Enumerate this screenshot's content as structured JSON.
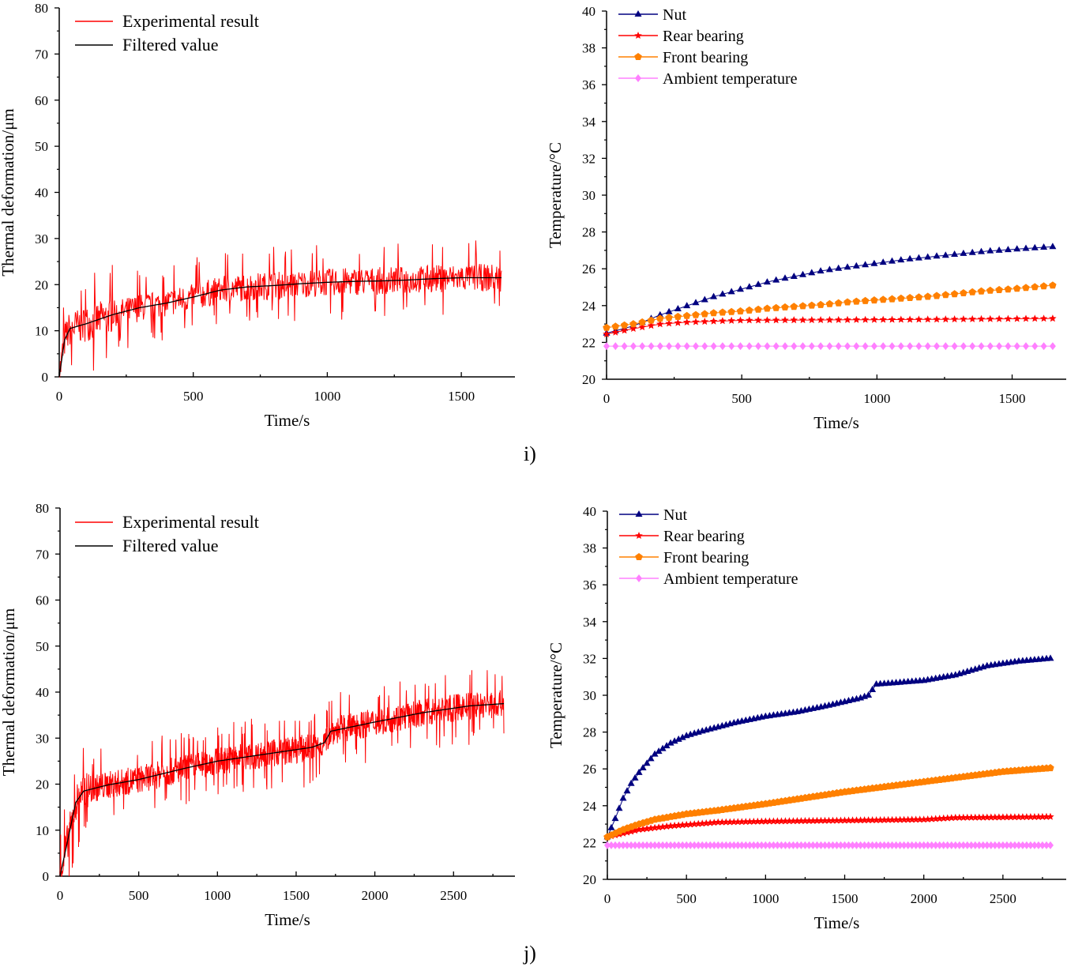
{
  "panel_labels": [
    "i)",
    "j)"
  ],
  "chart_data": [
    {
      "id": "i-deformation",
      "type": "line",
      "xlabel": "Time/s",
      "ylabel": "Thermal deformation/μm",
      "xlim": [
        0,
        1700
      ],
      "ylim": [
        0,
        80
      ],
      "xticks": [
        0,
        500,
        1000,
        1500
      ],
      "yticks": [
        0,
        10,
        20,
        30,
        40,
        50,
        60,
        70,
        80
      ],
      "legend": "top-left",
      "series": [
        {
          "name": "Experimental result",
          "color": "#ff0000",
          "noise_amplitude": 5,
          "x_end": 1650
        },
        {
          "name": "Filtered value",
          "color": "#000000",
          "x": [
            0,
            20,
            40,
            100,
            200,
            300,
            400,
            500,
            600,
            700,
            800,
            900,
            1000,
            1100,
            1200,
            1300,
            1400,
            1500,
            1650
          ],
          "y": [
            0,
            8,
            10.5,
            11.5,
            13.5,
            15,
            16,
            17.3,
            18.8,
            19.5,
            19.8,
            20.2,
            20.5,
            20.7,
            20.8,
            21,
            21.3,
            21.5,
            21.5
          ]
        }
      ]
    },
    {
      "id": "i-temperature",
      "type": "line",
      "xlabel": "Time/s",
      "ylabel": "Temperature/°C",
      "xlim": [
        0,
        1700
      ],
      "ylim": [
        20,
        40
      ],
      "xticks": [
        0,
        500,
        1000,
        1500
      ],
      "yticks": [
        20,
        22,
        24,
        26,
        28,
        30,
        32,
        34,
        36,
        38,
        40
      ],
      "legend": "top-left",
      "series": [
        {
          "name": "Nut",
          "color": "#000080",
          "marker": "triangle",
          "x": [
            0,
            100,
            200,
            300,
            400,
            500,
            600,
            700,
            800,
            900,
            1000,
            1100,
            1200,
            1300,
            1400,
            1500,
            1650
          ],
          "y": [
            22.5,
            22.9,
            23.5,
            24.0,
            24.5,
            24.9,
            25.3,
            25.6,
            25.9,
            26.1,
            26.3,
            26.5,
            26.65,
            26.8,
            26.95,
            27.05,
            27.2
          ]
        },
        {
          "name": "Rear bearing",
          "color": "#ff0000",
          "marker": "star",
          "x": [
            0,
            100,
            200,
            300,
            400,
            500,
            800,
            1200,
            1650
          ],
          "y": [
            22.45,
            22.75,
            23.0,
            23.1,
            23.15,
            23.2,
            23.22,
            23.25,
            23.3
          ]
        },
        {
          "name": "Front bearing",
          "color": "#ff8000",
          "marker": "pentagon",
          "x": [
            0,
            100,
            200,
            300,
            400,
            500,
            600,
            700,
            800,
            900,
            1000,
            1100,
            1200,
            1300,
            1400,
            1500,
            1650
          ],
          "y": [
            22.8,
            23.0,
            23.3,
            23.45,
            23.6,
            23.7,
            23.85,
            23.95,
            24.05,
            24.2,
            24.3,
            24.4,
            24.5,
            24.65,
            24.8,
            24.9,
            25.1
          ]
        },
        {
          "name": "Ambient temperature",
          "color": "#ff80ff",
          "marker": "diamond",
          "x": [
            0,
            1650
          ],
          "y": [
            21.8,
            21.8
          ]
        }
      ]
    },
    {
      "id": "j-deformation",
      "type": "line",
      "xlabel": "Time/s",
      "ylabel": "Thermal deformation/μm",
      "xlim": [
        0,
        2890
      ],
      "ylim": [
        0,
        80
      ],
      "xticks": [
        0,
        500,
        1000,
        1500,
        2000,
        2500
      ],
      "yticks": [
        0,
        10,
        20,
        30,
        40,
        50,
        60,
        70,
        80
      ],
      "legend": "top-left",
      "series": [
        {
          "name": "Experimental result",
          "color": "#ff0000",
          "noise_amplitude": 5,
          "x_end": 2820
        },
        {
          "name": "Filtered value",
          "color": "#000000",
          "x": [
            0,
            50,
            100,
            150,
            300,
            500,
            800,
            1000,
            1300,
            1600,
            1680,
            1720,
            2000,
            2300,
            2600,
            2820
          ],
          "y": [
            0,
            8,
            16,
            18.5,
            19.8,
            21,
            23.5,
            25,
            26.5,
            28,
            29,
            31.5,
            33.5,
            35.5,
            37,
            37.5
          ]
        }
      ]
    },
    {
      "id": "j-temperature",
      "type": "line",
      "xlabel": "Time/s",
      "ylabel": "Temperature/°C",
      "xlim": [
        0,
        2900
      ],
      "ylim": [
        20,
        40
      ],
      "xticks": [
        0,
        500,
        1000,
        1500,
        2000,
        2500
      ],
      "yticks": [
        20,
        22,
        24,
        26,
        28,
        30,
        32,
        34,
        36,
        38,
        40
      ],
      "legend": "top-left",
      "series": [
        {
          "name": "Nut",
          "color": "#000080",
          "marker": "triangle",
          "x": [
            0,
            50,
            100,
            150,
            200,
            250,
            300,
            400,
            500,
            600,
            800,
            1000,
            1200,
            1400,
            1600,
            1650,
            1700,
            2000,
            2200,
            2400,
            2600,
            2800
          ],
          "y": [
            22.3,
            23.3,
            24.4,
            25.2,
            25.8,
            26.3,
            26.8,
            27.4,
            27.8,
            28.05,
            28.5,
            28.85,
            29.1,
            29.45,
            29.85,
            30.0,
            30.6,
            30.8,
            31.1,
            31.6,
            31.85,
            32.0
          ]
        },
        {
          "name": "Rear bearing",
          "color": "#ff0000",
          "marker": "star",
          "x": [
            0,
            100,
            200,
            400,
            700,
            1000,
            1500,
            2000,
            2200,
            2800
          ],
          "y": [
            22.3,
            22.5,
            22.7,
            22.9,
            23.1,
            23.15,
            23.2,
            23.25,
            23.35,
            23.4
          ]
        },
        {
          "name": "Front bearing",
          "color": "#ff8000",
          "marker": "pentagon",
          "x": [
            0,
            100,
            200,
            300,
            500,
            700,
            1000,
            1500,
            2000,
            2500,
            2800
          ],
          "y": [
            22.3,
            22.7,
            23.0,
            23.25,
            23.55,
            23.75,
            24.1,
            24.75,
            25.3,
            25.85,
            26.05
          ]
        },
        {
          "name": "Ambient temperature",
          "color": "#ff80ff",
          "marker": "diamond",
          "x": [
            0,
            2800
          ],
          "y": [
            21.85,
            21.85
          ]
        }
      ]
    }
  ]
}
